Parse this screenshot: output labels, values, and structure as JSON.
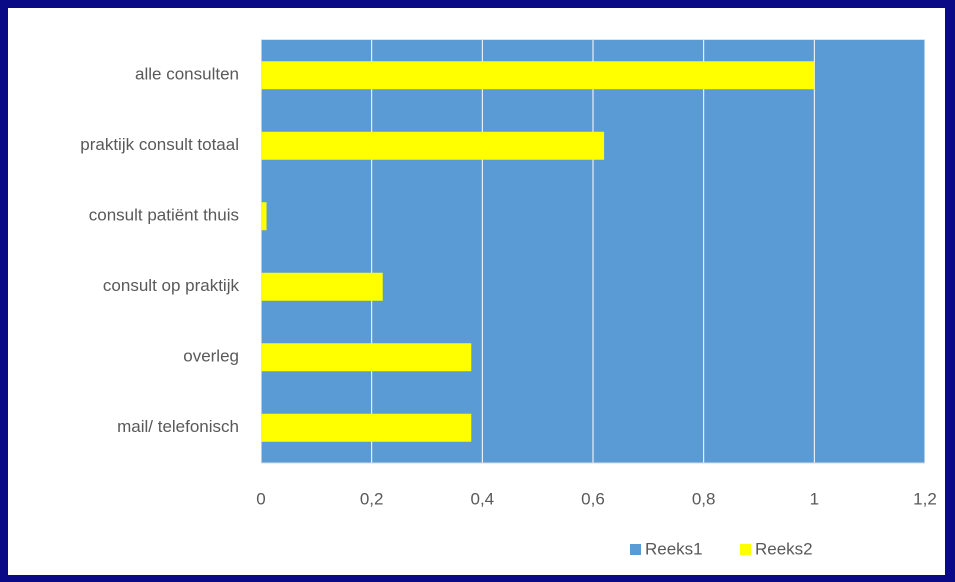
{
  "chart_data": {
    "type": "bar",
    "orientation": "horizontal",
    "categories": [
      "alle consulten",
      "praktijk consult totaal",
      "consult patiënt thuis",
      "consult op praktijk",
      "overleg",
      "mail/ telefonisch"
    ],
    "series": [
      {
        "name": "Reeks1",
        "color": "#5b9bd5",
        "values": [
          1.2,
          1.2,
          1.2,
          1.2,
          1.2,
          1.2
        ]
      },
      {
        "name": "Reeks2",
        "color": "#ffff00",
        "values": [
          1,
          0.62,
          0.01,
          0.22,
          0.38,
          0.38
        ]
      }
    ],
    "xlim": [
      0,
      1.2
    ],
    "xticks": [
      0,
      {
        "value": 0.2,
        "label": "0,2"
      },
      {
        "value": 0.4,
        "label": "0,4"
      },
      {
        "value": 0.6,
        "label": "0,6"
      },
      {
        "value": 0.8,
        "label": "0,8"
      },
      1,
      {
        "value": 1.2,
        "label": "1,2"
      }
    ],
    "grid": true,
    "legend": "bottom"
  }
}
